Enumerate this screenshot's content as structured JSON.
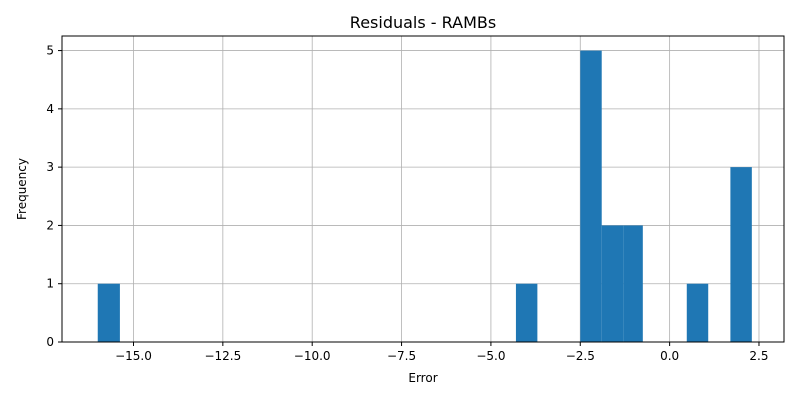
{
  "chart_data": {
    "type": "bar",
    "title": "Residuals - RAMBs",
    "xlabel": "Error",
    "ylabel": "Frequency",
    "xlim": [
      -17.0,
      3.2
    ],
    "ylim": [
      0,
      5.25
    ],
    "xticks": [
      -15.0,
      -12.5,
      -10.0,
      -7.5,
      -5.0,
      -2.5,
      0.0,
      2.5
    ],
    "xtick_labels": [
      "−15.0",
      "−12.5",
      "−10.0",
      "−7.5",
      "−5.0",
      "−2.5",
      "0.0",
      "2.5"
    ],
    "yticks": [
      0,
      1,
      2,
      3,
      4,
      5
    ],
    "ytick_labels": [
      "0",
      "1",
      "2",
      "3",
      "4",
      "5"
    ],
    "grid": true,
    "bar_color": "#1f77b4",
    "bins": [
      {
        "x0": -16.0,
        "x1": -15.38,
        "count": 1
      },
      {
        "x0": -4.3,
        "x1": -3.7,
        "count": 1
      },
      {
        "x0": -2.5,
        "x1": -1.9,
        "count": 5
      },
      {
        "x0": -1.9,
        "x1": -1.3,
        "count": 2
      },
      {
        "x0": -1.3,
        "x1": -0.75,
        "count": 2
      },
      {
        "x0": 0.48,
        "x1": 1.08,
        "count": 1
      },
      {
        "x0": 1.7,
        "x1": 2.3,
        "count": 3
      }
    ]
  }
}
